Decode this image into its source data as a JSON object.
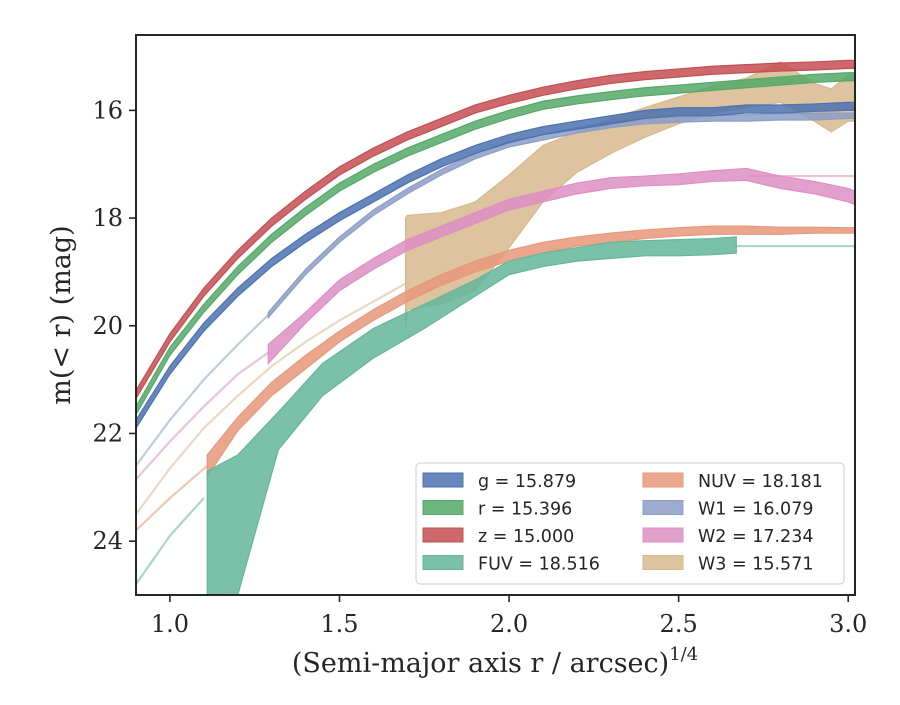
{
  "chart_data": {
    "type": "line",
    "xlabel": "(Semi-major axis r / arcsec)",
    "xlabel_exponent": "1/4",
    "ylabel": "m(< r) (mag)",
    "xlim": [
      0.9,
      3.02
    ],
    "ylim": [
      25.0,
      14.6
    ],
    "y_inverted": true,
    "x_ticks": [
      1.0,
      1.5,
      2.0,
      2.5,
      3.0
    ],
    "x_tick_labels": [
      "1.0",
      "1.5",
      "2.0",
      "2.5",
      "3.0"
    ],
    "y_ticks": [
      16,
      18,
      20,
      22,
      24
    ],
    "y_tick_labels": [
      "16",
      "18",
      "20",
      "22",
      "24"
    ],
    "grid": false,
    "legend_position": "lower-right",
    "legend_columns": 2,
    "series": [
      {
        "name": "g",
        "legend_label": "g = 15.879",
        "color": "#4c72b0",
        "band_x": [
          0.9,
          1.0,
          1.1,
          1.2,
          1.3,
          1.4,
          1.5,
          1.6,
          1.7,
          1.8,
          1.9,
          2.0,
          2.1,
          2.2,
          2.3,
          2.4,
          2.5,
          2.6,
          2.7,
          2.8,
          2.9,
          3.0,
          3.02
        ],
        "band_lower": [
          21.9,
          20.9,
          20.1,
          19.45,
          18.9,
          18.45,
          18.05,
          17.7,
          17.35,
          17.05,
          16.8,
          16.6,
          16.45,
          16.35,
          16.25,
          16.15,
          16.1,
          16.1,
          16.05,
          16.05,
          16.02,
          16.0,
          16.0
        ],
        "band_upper": [
          21.75,
          20.75,
          19.95,
          19.3,
          18.75,
          18.3,
          17.9,
          17.55,
          17.2,
          16.9,
          16.65,
          16.45,
          16.3,
          16.2,
          16.1,
          16.0,
          15.95,
          15.95,
          15.9,
          15.9,
          15.88,
          15.85,
          15.85
        ],
        "thin_x": [],
        "thin_y": []
      },
      {
        "name": "r",
        "legend_label": "r = 15.396",
        "color": "#55a868",
        "band_x": [
          0.9,
          1.0,
          1.1,
          1.2,
          1.3,
          1.4,
          1.5,
          1.6,
          1.7,
          1.8,
          1.9,
          2.0,
          2.1,
          2.2,
          2.3,
          2.4,
          2.5,
          2.6,
          2.7,
          2.8,
          2.9,
          3.0,
          3.02
        ],
        "band_lower": [
          21.65,
          20.55,
          19.75,
          19.05,
          18.45,
          17.95,
          17.5,
          17.15,
          16.85,
          16.6,
          16.35,
          16.15,
          15.98,
          15.88,
          15.8,
          15.73,
          15.68,
          15.63,
          15.58,
          15.53,
          15.48,
          15.45,
          15.45
        ],
        "band_upper": [
          21.5,
          20.4,
          19.6,
          18.9,
          18.3,
          17.8,
          17.35,
          17.0,
          16.7,
          16.45,
          16.2,
          16.0,
          15.83,
          15.73,
          15.65,
          15.58,
          15.53,
          15.48,
          15.43,
          15.38,
          15.33,
          15.3,
          15.3
        ],
        "thin_x": [],
        "thin_y": []
      },
      {
        "name": "z",
        "legend_label": "z = 15.000",
        "color": "#c44e52",
        "band_x": [
          0.9,
          1.0,
          1.1,
          1.2,
          1.3,
          1.4,
          1.5,
          1.6,
          1.7,
          1.8,
          1.9,
          2.0,
          2.1,
          2.2,
          2.3,
          2.4,
          2.5,
          2.6,
          2.7,
          2.8,
          2.9,
          3.0,
          3.02
        ],
        "band_lower": [
          21.35,
          20.3,
          19.45,
          18.75,
          18.15,
          17.65,
          17.2,
          16.85,
          16.55,
          16.3,
          16.05,
          15.87,
          15.72,
          15.6,
          15.5,
          15.43,
          15.38,
          15.33,
          15.3,
          15.27,
          15.25,
          15.22,
          15.22
        ],
        "band_upper": [
          21.2,
          20.15,
          19.3,
          18.6,
          18.0,
          17.5,
          17.05,
          16.7,
          16.4,
          16.15,
          15.9,
          15.72,
          15.57,
          15.45,
          15.35,
          15.28,
          15.23,
          15.18,
          15.15,
          15.12,
          15.1,
          15.07,
          15.07
        ],
        "thin_x": [],
        "thin_y": []
      },
      {
        "name": "FUV",
        "legend_label": "FUV = 18.516",
        "color": "#64b69b",
        "band_x": [
          1.11,
          1.2,
          1.32,
          1.45,
          1.6,
          1.75,
          1.9,
          2.0,
          2.1,
          2.2,
          2.3,
          2.4,
          2.5,
          2.6,
          2.67
        ],
        "band_lower": [
          25.0,
          25.0,
          22.3,
          21.3,
          20.6,
          20.05,
          19.45,
          19.05,
          18.9,
          18.8,
          18.75,
          18.7,
          18.7,
          18.68,
          18.65
        ],
        "band_upper": [
          22.7,
          22.4,
          21.6,
          20.7,
          20.05,
          19.6,
          19.15,
          18.8,
          18.65,
          18.55,
          18.45,
          18.42,
          18.4,
          18.38,
          18.35
        ],
        "thin_x": [
          0.9,
          1.0,
          1.1,
          2.67,
          2.8,
          3.02
        ],
        "thin_y": [
          24.8,
          23.9,
          23.2,
          18.52,
          18.52,
          18.52
        ]
      },
      {
        "name": "NUV",
        "legend_label": "NUV = 18.181",
        "color": "#e8987a",
        "band_x": [
          1.11,
          1.2,
          1.3,
          1.4,
          1.5,
          1.6,
          1.7,
          1.8,
          1.9,
          2.0,
          2.1,
          2.2,
          2.3,
          2.4,
          2.5,
          2.6,
          2.7,
          2.8,
          2.9,
          3.0,
          3.02
        ],
        "band_lower": [
          22.8,
          21.95,
          21.3,
          20.8,
          20.3,
          19.9,
          19.55,
          19.25,
          19.0,
          18.8,
          18.65,
          18.52,
          18.45,
          18.38,
          18.33,
          18.3,
          18.3,
          18.3,
          18.28,
          18.28,
          18.28
        ],
        "band_upper": [
          22.4,
          21.7,
          21.05,
          20.55,
          20.1,
          19.7,
          19.35,
          19.05,
          18.8,
          18.6,
          18.45,
          18.35,
          18.28,
          18.22,
          18.18,
          18.15,
          18.15,
          18.17,
          18.17,
          18.18,
          18.18
        ],
        "thin_x": [
          0.9,
          1.0,
          1.11
        ],
        "thin_y": [
          23.8,
          23.2,
          22.6
        ]
      },
      {
        "name": "W1",
        "legend_label": "W1 = 16.079",
        "color": "#8c9ec6",
        "band_x": [
          1.29,
          1.4,
          1.5,
          1.6,
          1.7,
          1.8,
          1.9,
          2.0,
          2.1,
          2.2,
          2.3,
          2.4,
          2.5,
          2.6,
          2.7,
          2.8,
          2.9,
          3.0,
          3.02
        ],
        "band_lower": [
          19.85,
          19.05,
          18.45,
          17.95,
          17.55,
          17.2,
          16.9,
          16.68,
          16.55,
          16.42,
          16.32,
          16.25,
          16.22,
          16.2,
          16.2,
          16.18,
          16.18,
          16.15,
          16.15
        ],
        "band_upper": [
          19.75,
          18.95,
          18.35,
          17.85,
          17.45,
          17.1,
          16.8,
          16.58,
          16.45,
          16.32,
          16.22,
          16.15,
          16.12,
          16.1,
          16.08,
          16.06,
          16.05,
          16.05,
          16.05
        ],
        "thin_x": [
          0.9,
          1.0,
          1.1,
          1.2,
          1.29
        ],
        "thin_y": [
          22.6,
          21.75,
          21.0,
          20.35,
          19.8
        ]
      },
      {
        "name": "W2",
        "legend_label": "W2 = 17.234",
        "color": "#dd8fc4",
        "band_x": [
          1.29,
          1.4,
          1.5,
          1.6,
          1.7,
          1.8,
          1.9,
          2.0,
          2.1,
          2.2,
          2.3,
          2.4,
          2.5,
          2.6,
          2.7,
          2.8,
          2.9,
          3.0,
          3.02
        ],
        "band_lower": [
          20.7,
          19.95,
          19.35,
          18.95,
          18.6,
          18.35,
          18.1,
          17.85,
          17.7,
          17.55,
          17.45,
          17.4,
          17.38,
          17.32,
          17.3,
          17.45,
          17.55,
          17.7,
          17.75
        ],
        "band_upper": [
          20.35,
          19.75,
          19.15,
          18.75,
          18.4,
          18.15,
          17.9,
          17.65,
          17.5,
          17.35,
          17.25,
          17.22,
          17.18,
          17.12,
          17.08,
          17.22,
          17.32,
          17.45,
          17.5
        ],
        "thin_x": [
          0.9,
          1.0,
          1.1,
          1.2,
          1.29,
          2.7,
          2.9,
          3.02
        ],
        "thin_y": [
          22.85,
          22.15,
          21.5,
          20.9,
          20.5,
          17.22,
          17.22,
          17.22
        ]
      },
      {
        "name": "W3",
        "legend_label": "W3 = 15.571",
        "color": "#d8b88e",
        "band_x": [
          1.695,
          1.7,
          1.8,
          1.9,
          2.0,
          2.1,
          2.2,
          2.3,
          2.4,
          2.5,
          2.6,
          2.7,
          2.8,
          2.9,
          2.95,
          3.0,
          3.02
        ],
        "band_lower": [
          20.05,
          19.7,
          19.6,
          19.35,
          18.55,
          17.7,
          17.15,
          16.8,
          16.5,
          16.25,
          16.05,
          15.95,
          15.85,
          16.2,
          16.4,
          16.2,
          16.2
        ],
        "band_upper": [
          18.0,
          17.95,
          17.9,
          17.7,
          17.2,
          16.65,
          16.4,
          16.15,
          15.95,
          15.75,
          15.55,
          15.4,
          15.1,
          15.5,
          15.6,
          15.35,
          15.35
        ],
        "thin_x": [
          0.9,
          1.0,
          1.1,
          1.2,
          1.3,
          1.4,
          1.5,
          1.6,
          1.7
        ],
        "thin_y": [
          23.5,
          22.65,
          21.9,
          21.3,
          20.75,
          20.3,
          19.9,
          19.55,
          19.2
        ]
      }
    ]
  }
}
